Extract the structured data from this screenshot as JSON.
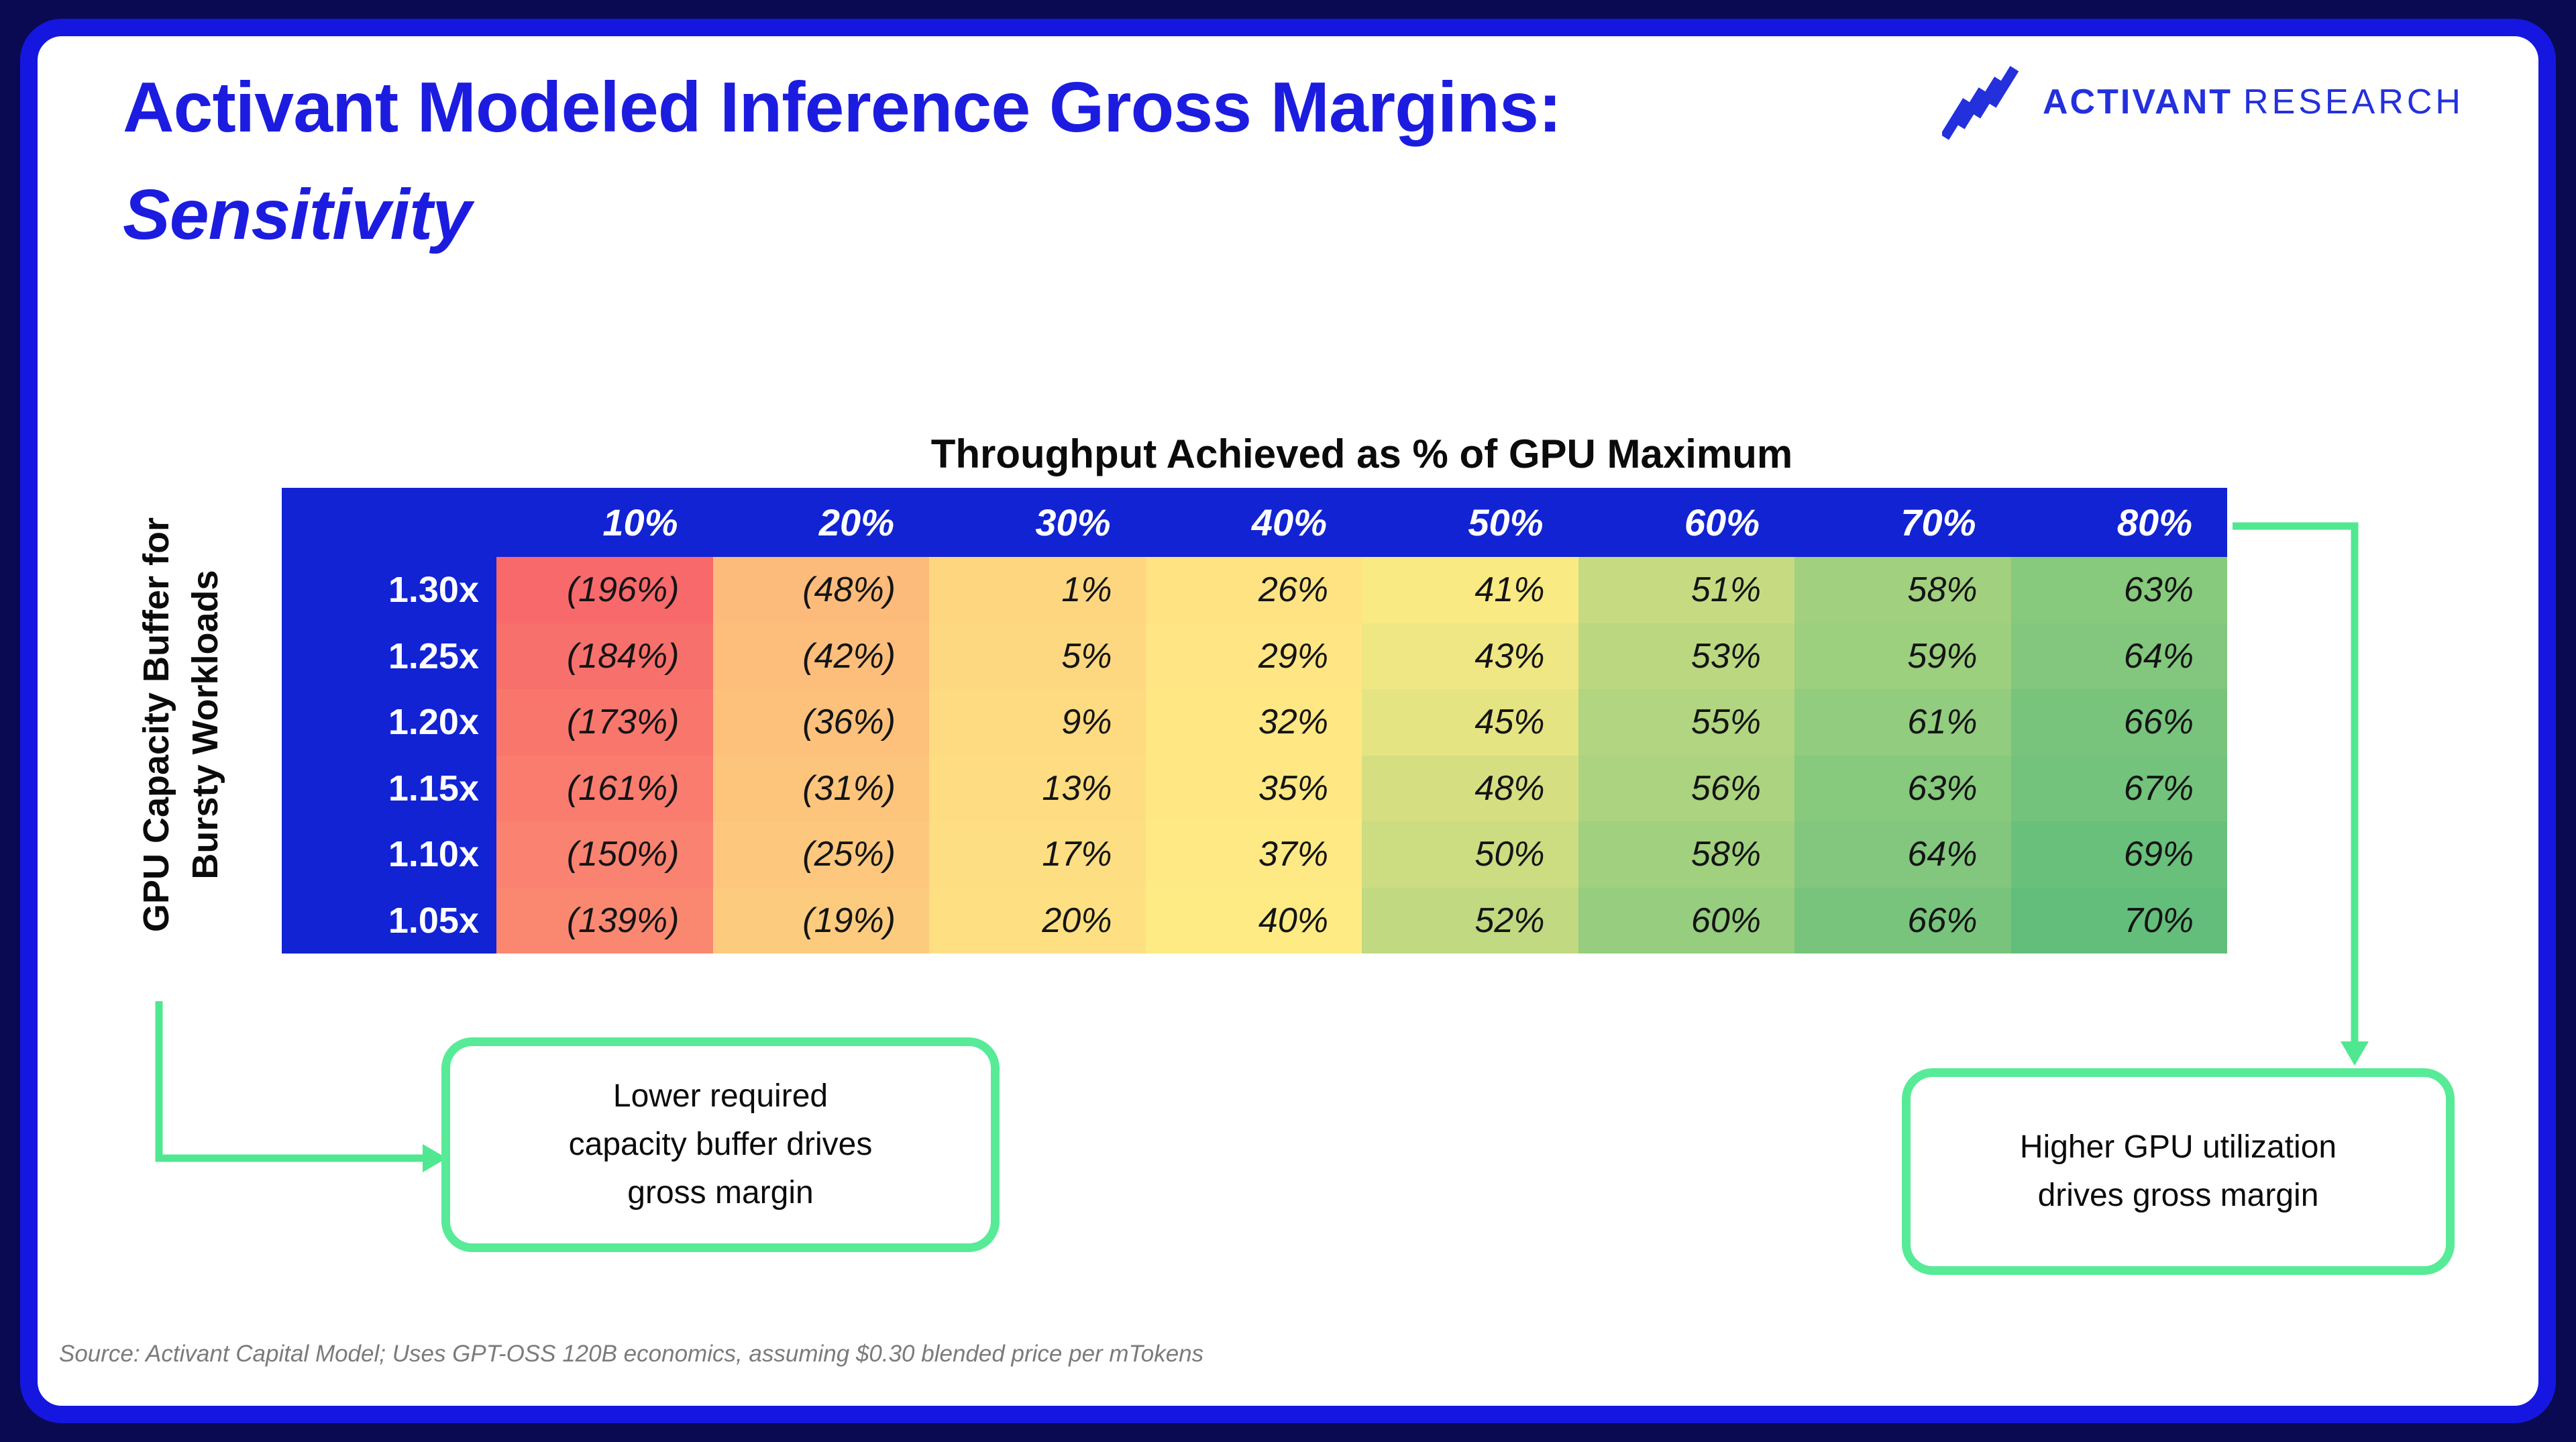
{
  "title": {
    "line1": "Activant Modeled Inference Gross Margins:",
    "line2": "Sensitivity"
  },
  "logo": {
    "brand": "ACTIVANT",
    "suffix": "RESEARCH"
  },
  "chart_data": {
    "type": "heatmap",
    "title": "Throughput Achieved as % of GPU Maximum",
    "y_axis_label_lines": [
      "GPU Capacity Buffer for",
      "Bursty Workloads"
    ],
    "columns": [
      "10%",
      "20%",
      "30%",
      "40%",
      "50%",
      "60%",
      "70%",
      "80%"
    ],
    "rows": [
      "1.30x",
      "1.25x",
      "1.20x",
      "1.15x",
      "1.10x",
      "1.05x"
    ],
    "cells": [
      [
        "(196%)",
        "(48%)",
        "1%",
        "26%",
        "41%",
        "51%",
        "58%",
        "63%"
      ],
      [
        "(184%)",
        "(42%)",
        "5%",
        "29%",
        "43%",
        "53%",
        "59%",
        "64%"
      ],
      [
        "(173%)",
        "(36%)",
        "9%",
        "32%",
        "45%",
        "55%",
        "61%",
        "66%"
      ],
      [
        "(161%)",
        "(31%)",
        "13%",
        "35%",
        "48%",
        "56%",
        "63%",
        "67%"
      ],
      [
        "(150%)",
        "(25%)",
        "17%",
        "37%",
        "50%",
        "58%",
        "64%",
        "69%"
      ],
      [
        "(139%)",
        "(19%)",
        "20%",
        "40%",
        "52%",
        "60%",
        "66%",
        "70%"
      ]
    ],
    "values": [
      [
        -196,
        -48,
        1,
        26,
        41,
        51,
        58,
        63
      ],
      [
        -184,
        -42,
        5,
        29,
        43,
        53,
        59,
        64
      ],
      [
        -173,
        -36,
        9,
        32,
        45,
        55,
        61,
        66
      ],
      [
        -161,
        -31,
        13,
        35,
        48,
        56,
        63,
        67
      ],
      [
        -150,
        -25,
        17,
        37,
        50,
        58,
        64,
        69
      ],
      [
        -139,
        -19,
        20,
        40,
        52,
        60,
        66,
        70
      ]
    ],
    "color_scale": {
      "min_value": -196,
      "mid_value": 40,
      "max_value": 70,
      "min_color": "#F8696B",
      "mid_color": "#FFEB84",
      "max_color": "#63BE7B"
    },
    "legend_position": "none",
    "grid": false
  },
  "callouts": {
    "left_lines": [
      "Lower required",
      "capacity buffer drives",
      "gross margin"
    ],
    "right_lines": [
      "Higher GPU utilization",
      "drives gross margin"
    ]
  },
  "source": "Source: Activant Capital Model; Uses GPT-OSS 120B economics, assuming $0.30 blended price per mTokens",
  "colors": {
    "background": "#0A0A52",
    "card_border": "#1517E0",
    "title_blue": "#1C1CE0",
    "logo_blue": "#2330DC",
    "table_blue": "#1123D3",
    "accent_green": "#4FE891",
    "callout_border_green": "#57EB97",
    "cell_text": "#141414",
    "source_gray": "#7B7B7B"
  }
}
